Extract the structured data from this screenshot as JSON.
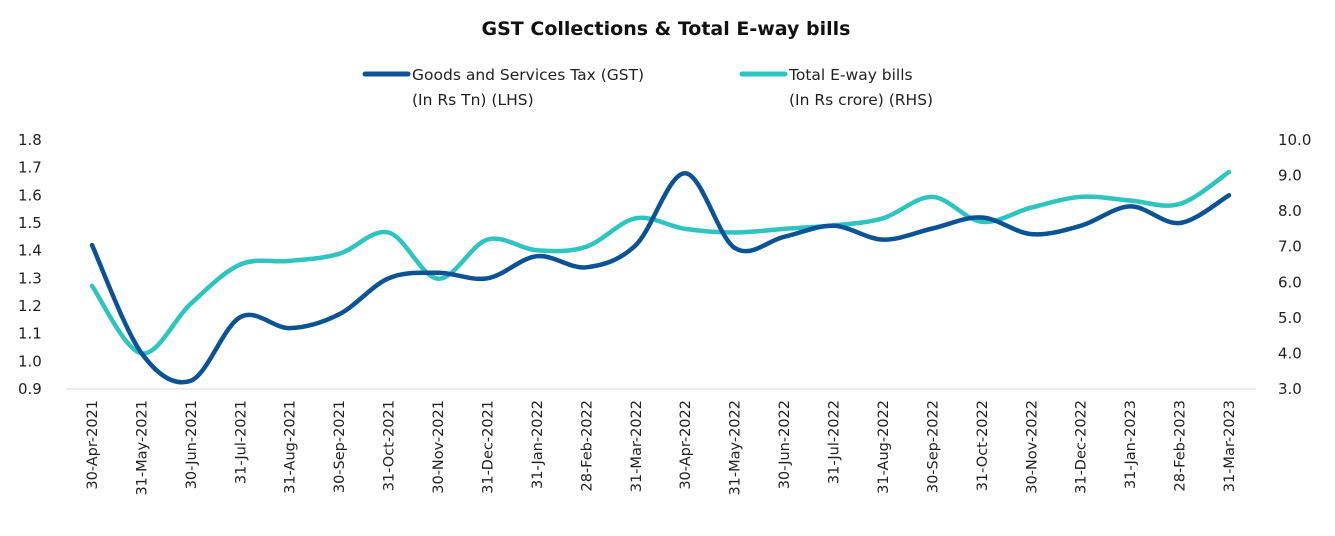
{
  "chart_data": {
    "type": "line",
    "title": "GST Collections & Total E-way bills",
    "categories": [
      "30-Apr-2021",
      "31-May-2021",
      "30-Jun-2021",
      "31-Jul-2021",
      "31-Aug-2021",
      "30-Sep-2021",
      "31-Oct-2021",
      "30-Nov-2021",
      "31-Dec-2021",
      "31-Jan-2022",
      "28-Feb-2022",
      "31-Mar-2022",
      "30-Apr-2022",
      "31-May-2022",
      "30-Jun-2022",
      "31-Jul-2022",
      "31-Aug-2022",
      "30-Sep-2022",
      "31-Oct-2022",
      "30-Nov-2022",
      "31-Dec-2022",
      "31-Jan-2023",
      "28-Feb-2023",
      "31-Mar-2023"
    ],
    "series": [
      {
        "name_lines": [
          "Goods and Services Tax (GST)",
          "(In Rs Tn) (LHS)"
        ],
        "axis": "left",
        "color": "#0b5394",
        "values": [
          1.42,
          1.03,
          0.93,
          1.16,
          1.12,
          1.17,
          1.3,
          1.32,
          1.3,
          1.38,
          1.34,
          1.42,
          1.68,
          1.41,
          1.45,
          1.49,
          1.44,
          1.48,
          1.52,
          1.46,
          1.49,
          1.56,
          1.5,
          1.6
        ]
      },
      {
        "name_lines": [
          "Total E-way bills",
          "(In Rs crore)   (RHS)"
        ],
        "axis": "right",
        "color": "#2ec4c0",
        "values": [
          5.9,
          4.0,
          5.4,
          6.5,
          6.6,
          6.8,
          7.4,
          6.1,
          7.2,
          6.9,
          7.0,
          7.8,
          7.5,
          7.4,
          7.5,
          7.6,
          7.8,
          8.4,
          7.7,
          8.1,
          8.4,
          8.3,
          8.2,
          9.1
        ]
      }
    ],
    "y_left": {
      "min": 0.9,
      "max": 1.8,
      "ticks": [
        "0.9",
        "1.0",
        "1.1",
        "1.2",
        "1.3",
        "1.4",
        "1.5",
        "1.6",
        "1.7",
        "1.8"
      ]
    },
    "y_right": {
      "min": 3.0,
      "max": 10.0,
      "ticks": [
        "3.0",
        "4.0",
        "5.0",
        "6.0",
        "7.0",
        "8.0",
        "9.0",
        "10.0"
      ]
    },
    "legend_position": "top-center",
    "grid": false
  }
}
